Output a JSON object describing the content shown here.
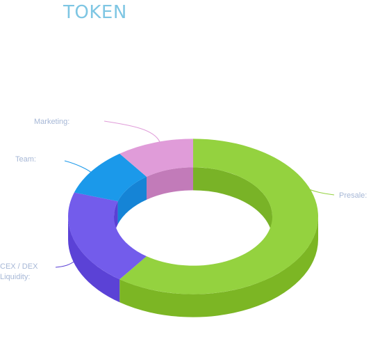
{
  "title": "TOKEN",
  "chart_data": {
    "type": "pie",
    "style": "3d-donut",
    "legend": "leader-lines",
    "slices": [
      {
        "label": "Presale:",
        "value": 60,
        "color": "#94d23f",
        "side": "#7cb624",
        "inner": "#79b327"
      },
      {
        "label": "CEX / DEX Liquidity:",
        "value": 20,
        "color": "#735ceb",
        "side": "#5b42d6",
        "inner": "#5a40d4"
      },
      {
        "label": "Team:",
        "value": 10,
        "color": "#1b99ea",
        "side": "#1584d6",
        "inner": "#1584d6"
      },
      {
        "label": "Marketing:",
        "value": 10,
        "color": "#e09cd9",
        "side": "#c88dbf",
        "inner": "#c27bb9"
      }
    ]
  }
}
